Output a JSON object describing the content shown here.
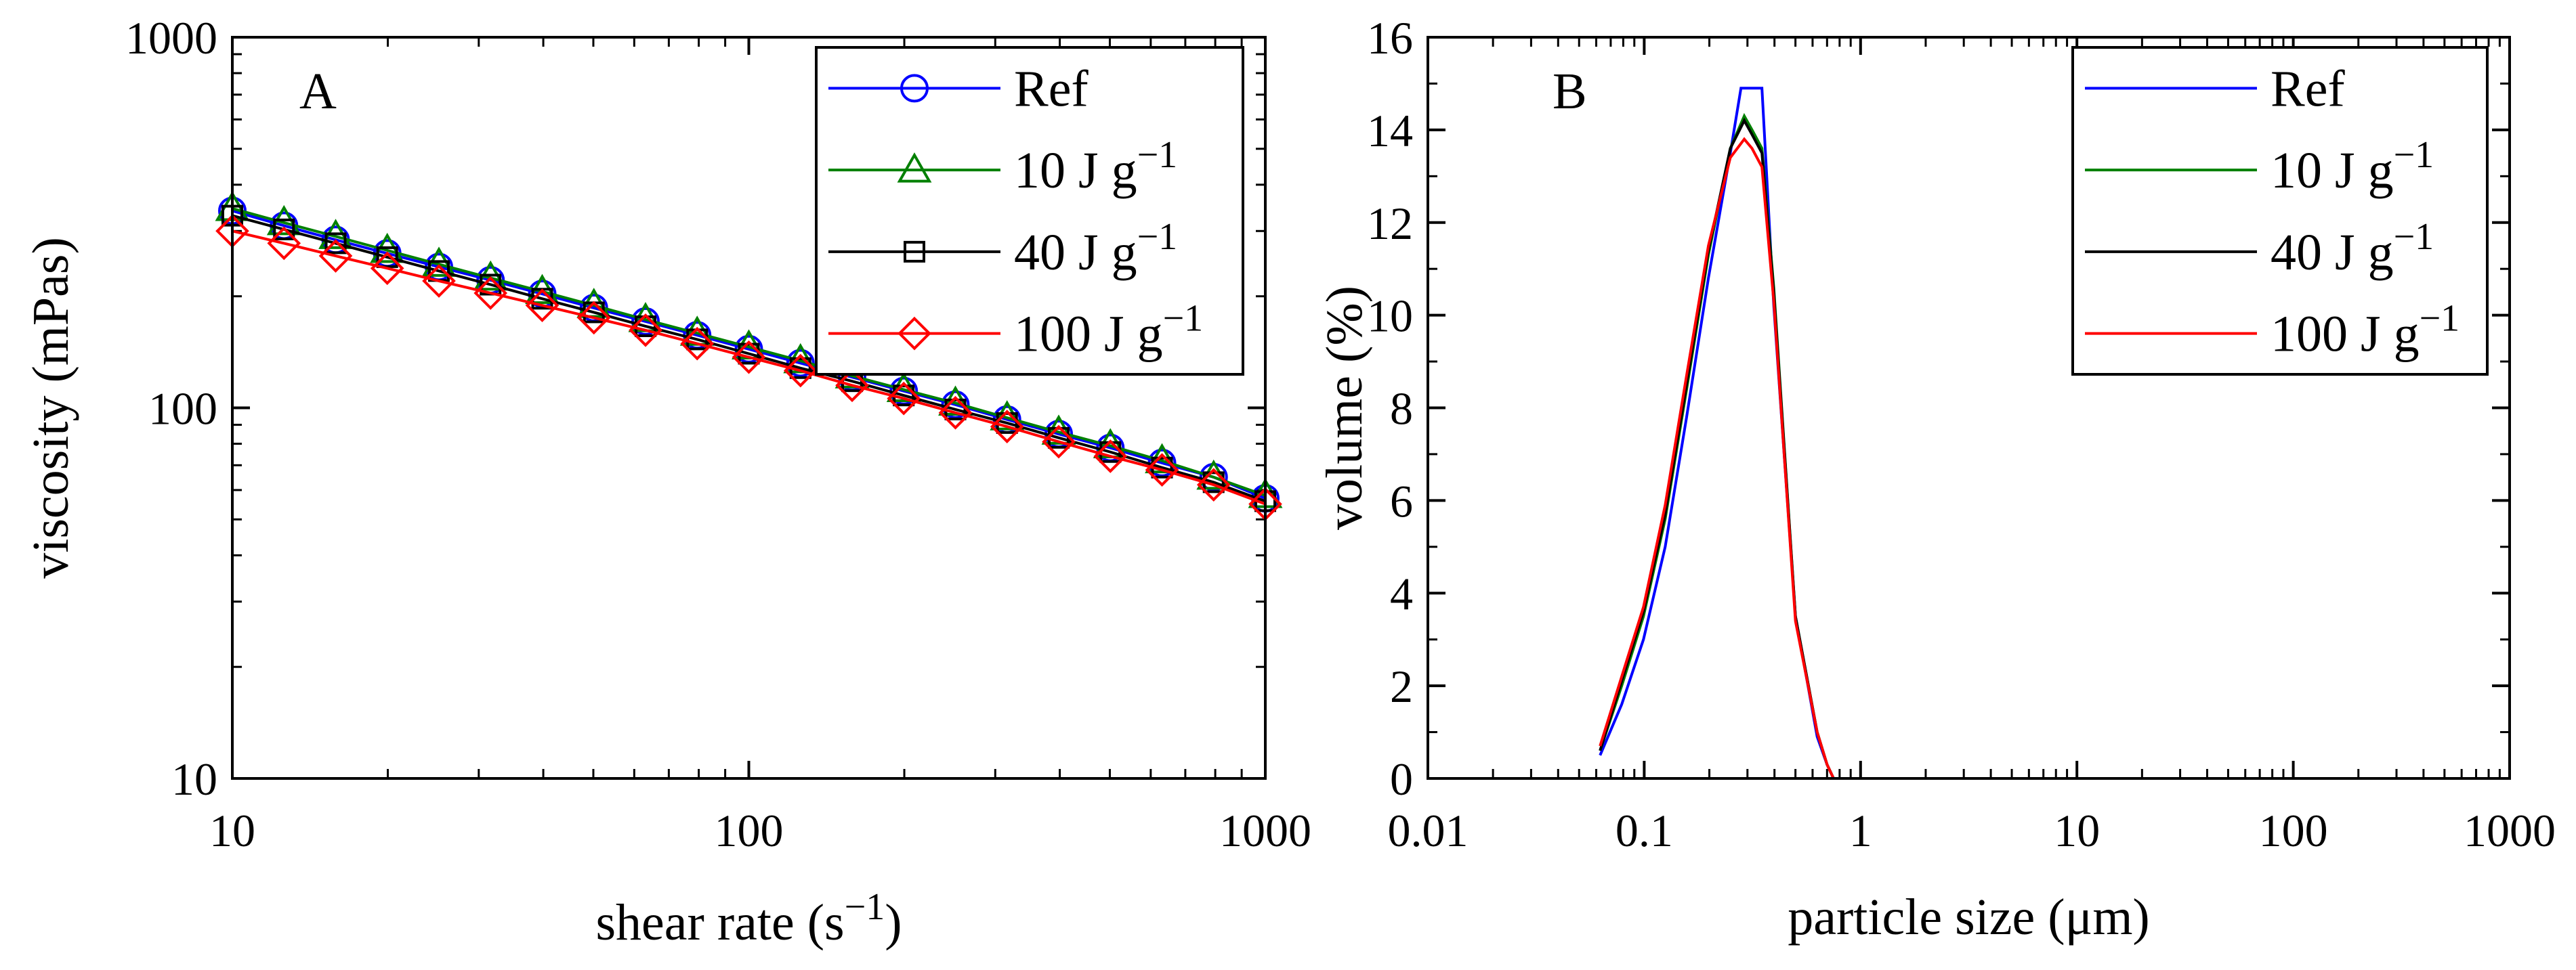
{
  "chart_data": [
    {
      "type": "line",
      "panel_label": "A",
      "xlabel": "shear rate (s",
      "xlabel_sup": "−1",
      "xlabel_suffix": ")",
      "ylabel": "viscosity (mPas)",
      "xscale": "log",
      "yscale": "log",
      "xlim": [
        10,
        1000
      ],
      "ylim": [
        10,
        1000
      ],
      "xticks": [
        10,
        100,
        1000
      ],
      "xtick_labels": [
        "10",
        "100",
        "1000"
      ],
      "yticks": [
        10,
        100,
        1000
      ],
      "ytick_labels": [
        "10",
        "100",
        "1000"
      ],
      "grid": false,
      "legend_position": "top-right",
      "x": [
        10,
        12.59,
        15.85,
        19.95,
        25.12,
        31.62,
        39.81,
        50.12,
        63.1,
        79.43,
        100,
        125.9,
        158.5,
        199.5,
        251.2,
        316.2,
        398.1,
        501.2,
        631,
        794.3,
        1000
      ],
      "series": [
        {
          "name": "Ref",
          "sup": "",
          "color": "#0000ff",
          "marker": "circle",
          "values": [
            340,
            310,
            284,
            261,
            240,
            221,
            203,
            186,
            171,
            157,
            144,
            132,
            121,
            111,
            102,
            93,
            85,
            78,
            71,
            65,
            57
          ]
        },
        {
          "name": "10 J g",
          "sup": "−1",
          "color": "#008000",
          "marker": "triangle",
          "values": [
            345,
            316,
            290,
            266,
            244,
            224,
            206,
            189,
            173,
            159,
            146,
            134,
            122,
            112,
            103,
            94,
            86,
            79,
            72,
            65,
            58
          ]
        },
        {
          "name": "40 J g",
          "sup": "−1",
          "color": "#000000",
          "marker": "square",
          "values": [
            330,
            303,
            278,
            255,
            234,
            215,
            197,
            181,
            166,
            153,
            140,
            128,
            118,
            108,
            99,
            91,
            83,
            76,
            69,
            63,
            56
          ]
        },
        {
          "name": "100 J g",
          "sup": "−1",
          "color": "#ff0000",
          "marker": "diamond",
          "values": [
            300,
            278,
            257,
            238,
            220,
            204,
            189,
            175,
            162,
            149,
            137,
            126,
            115,
            106,
            97,
            89,
            81,
            74,
            68,
            62,
            55
          ]
        }
      ]
    },
    {
      "type": "line",
      "panel_label": "B",
      "xlabel": "particle size (μm)",
      "ylabel": "volume (%)",
      "xscale": "log",
      "yscale": "linear",
      "xlim": [
        0.01,
        1000
      ],
      "ylim": [
        0,
        16
      ],
      "xticks": [
        0.01,
        0.1,
        1,
        10,
        100,
        1000
      ],
      "xtick_labels": [
        "0.01",
        "0.1",
        "1",
        "10",
        "100",
        "1000"
      ],
      "yticks": [
        0,
        2,
        4,
        6,
        8,
        10,
        12,
        14,
        16
      ],
      "ytick_labels": [
        "0",
        "2",
        "4",
        "6",
        "8",
        "10",
        "12",
        "14",
        "16"
      ],
      "grid": false,
      "legend_position": "top-right",
      "series": [
        {
          "name": "Ref",
          "sup": "",
          "color": "#0000ff",
          "x": [
            0.0625,
            0.0787,
            0.0992,
            0.125,
            0.157,
            0.198,
            0.25,
            0.28,
            0.315,
            0.35,
            0.397,
            0.5,
            0.63,
            0.7,
            0.75,
            1,
            10,
            100,
            800
          ],
          "values": [
            0.5,
            1.6,
            3.0,
            5.0,
            7.8,
            10.8,
            13.5,
            14.9,
            14.9,
            14.9,
            10.2,
            3.5,
            0.9,
            0.3,
            0,
            0,
            0,
            0,
            0
          ]
        },
        {
          "name": "10 J g",
          "sup": "−1",
          "color": "#008000",
          "x": [
            0.0625,
            0.0787,
            0.0992,
            0.125,
            0.157,
            0.198,
            0.25,
            0.29,
            0.315,
            0.35,
            0.397,
            0.5,
            0.63,
            0.7,
            0.75,
            1,
            10,
            100,
            800
          ],
          "values": [
            0.6,
            2.0,
            3.5,
            5.6,
            8.4,
            11.3,
            13.6,
            14.3,
            14.0,
            13.6,
            10.6,
            3.5,
            1.0,
            0.3,
            0,
            0,
            0,
            0,
            0
          ]
        },
        {
          "name": "40 J g",
          "sup": "−1",
          "color": "#000000",
          "x": [
            0.0625,
            0.0787,
            0.0992,
            0.125,
            0.157,
            0.198,
            0.25,
            0.29,
            0.315,
            0.35,
            0.397,
            0.5,
            0.63,
            0.7,
            0.75,
            1,
            10,
            100,
            800
          ],
          "values": [
            0.6,
            2.1,
            3.6,
            5.7,
            8.5,
            11.4,
            13.6,
            14.2,
            13.9,
            13.5,
            10.5,
            3.5,
            1.0,
            0.3,
            0,
            0,
            0,
            0,
            0
          ]
        },
        {
          "name": "100 J g",
          "sup": "−1",
          "color": "#ff0000",
          "x": [
            0.0625,
            0.0787,
            0.0992,
            0.125,
            0.157,
            0.198,
            0.25,
            0.29,
            0.315,
            0.35,
            0.397,
            0.5,
            0.63,
            0.7,
            0.75,
            1,
            10,
            100,
            800
          ],
          "values": [
            0.7,
            2.2,
            3.7,
            5.9,
            8.7,
            11.5,
            13.4,
            13.8,
            13.6,
            13.2,
            10.3,
            3.4,
            1.0,
            0.3,
            0,
            0,
            0,
            0,
            0
          ]
        }
      ]
    }
  ]
}
